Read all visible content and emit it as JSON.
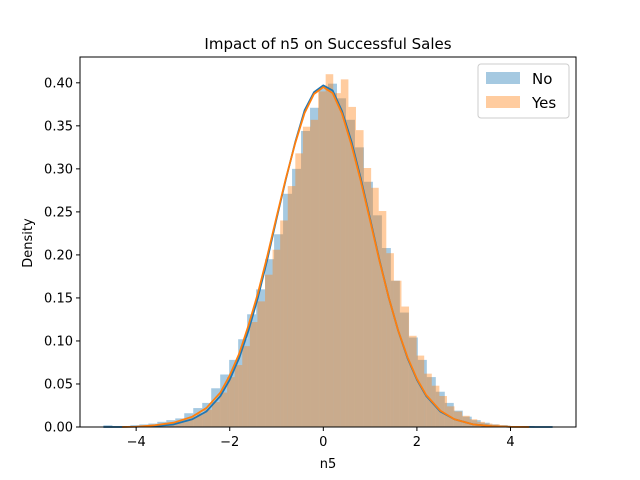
{
  "chart_data": {
    "type": "histogram-kde",
    "title": "Impact of n5 on Successful Sales",
    "xlabel": "n5",
    "ylabel": "Density",
    "xlim": [
      -5.2,
      5.4
    ],
    "ylim": [
      0.0,
      0.43
    ],
    "xticks": [
      -4,
      -2,
      0,
      2,
      4
    ],
    "xtick_labels": [
      "−4",
      "−2",
      "0",
      "2",
      "4"
    ],
    "yticks": [
      0.0,
      0.05,
      0.1,
      0.15,
      0.2,
      0.25,
      0.3,
      0.35,
      0.4
    ],
    "ytick_labels": [
      "0.00",
      "0.05",
      "0.10",
      "0.15",
      "0.20",
      "0.25",
      "0.30",
      "0.35",
      "0.40"
    ],
    "grid": false,
    "legend_position": "top-right",
    "series": [
      {
        "name": "No",
        "hist_color": "#1f77b4",
        "line_color": "#1f77b4",
        "bin_start": -4.7,
        "bin_width": 0.192,
        "hist_values": [
          0.002,
          0.001,
          0.001,
          0.002,
          0.003,
          0.004,
          0.006,
          0.008,
          0.01,
          0.016,
          0.022,
          0.028,
          0.045,
          0.061,
          0.078,
          0.102,
          0.131,
          0.16,
          0.195,
          0.224,
          0.271,
          0.3,
          0.344,
          0.371,
          0.393,
          0.399,
          0.382,
          0.357,
          0.325,
          0.285,
          0.246,
          0.208,
          0.17,
          0.133,
          0.104,
          0.078,
          0.058,
          0.041,
          0.028,
          0.019,
          0.012,
          0.008,
          0.005,
          0.003,
          0.002,
          0.001,
          0.001,
          0.001
        ],
        "kde_x": [
          -4.7,
          -4.3,
          -4.0,
          -3.6,
          -3.2,
          -2.8,
          -2.5,
          -2.2,
          -2.0,
          -1.8,
          -1.6,
          -1.4,
          -1.2,
          -1.0,
          -0.8,
          -0.6,
          -0.4,
          -0.2,
          0.0,
          0.2,
          0.4,
          0.6,
          0.8,
          1.0,
          1.2,
          1.4,
          1.6,
          1.8,
          2.0,
          2.2,
          2.5,
          2.8,
          3.2,
          3.6,
          4.0,
          4.5,
          4.9
        ],
        "kde_y": [
          0.0,
          0.0,
          0.0003,
          0.001,
          0.003,
          0.009,
          0.018,
          0.036,
          0.055,
          0.08,
          0.112,
          0.15,
          0.194,
          0.242,
          0.288,
          0.331,
          0.368,
          0.389,
          0.397,
          0.391,
          0.367,
          0.332,
          0.289,
          0.242,
          0.194,
          0.15,
          0.112,
          0.08,
          0.055,
          0.036,
          0.018,
          0.009,
          0.003,
          0.001,
          0.0002,
          0.0,
          0.0
        ]
      },
      {
        "name": "Yes",
        "hist_color": "#ff7f0e",
        "line_color": "#ff7f0e",
        "bin_start": -4.0,
        "bin_width": 0.162,
        "hist_values": [
          0.001,
          0.001,
          0.002,
          0.003,
          0.004,
          0.006,
          0.009,
          0.012,
          0.016,
          0.02,
          0.029,
          0.04,
          0.058,
          0.072,
          0.094,
          0.122,
          0.146,
          0.177,
          0.206,
          0.24,
          0.28,
          0.318,
          0.349,
          0.357,
          0.39,
          0.41,
          0.388,
          0.404,
          0.372,
          0.345,
          0.301,
          0.278,
          0.251,
          0.202,
          0.17,
          0.14,
          0.106,
          0.083,
          0.062,
          0.048,
          0.036,
          0.024,
          0.018,
          0.013,
          0.009,
          0.006,
          0.004,
          0.003,
          0.002,
          0.001,
          0.001,
          0.001
        ],
        "kde_x": [
          -4.3,
          -4.0,
          -3.6,
          -3.2,
          -2.8,
          -2.5,
          -2.2,
          -2.0,
          -1.8,
          -1.6,
          -1.4,
          -1.2,
          -1.0,
          -0.8,
          -0.6,
          -0.4,
          -0.2,
          0.0,
          0.2,
          0.4,
          0.6,
          0.8,
          1.0,
          1.2,
          1.4,
          1.6,
          1.8,
          2.0,
          2.2,
          2.5,
          2.8,
          3.2,
          3.6,
          4.0,
          4.4
        ],
        "kde_y": [
          0.0,
          0.0003,
          0.002,
          0.005,
          0.012,
          0.022,
          0.04,
          0.06,
          0.085,
          0.118,
          0.155,
          0.198,
          0.244,
          0.289,
          0.33,
          0.365,
          0.387,
          0.395,
          0.388,
          0.364,
          0.328,
          0.286,
          0.24,
          0.193,
          0.15,
          0.112,
          0.081,
          0.056,
          0.037,
          0.019,
          0.009,
          0.003,
          0.001,
          0.0002,
          0.0
        ]
      }
    ]
  }
}
